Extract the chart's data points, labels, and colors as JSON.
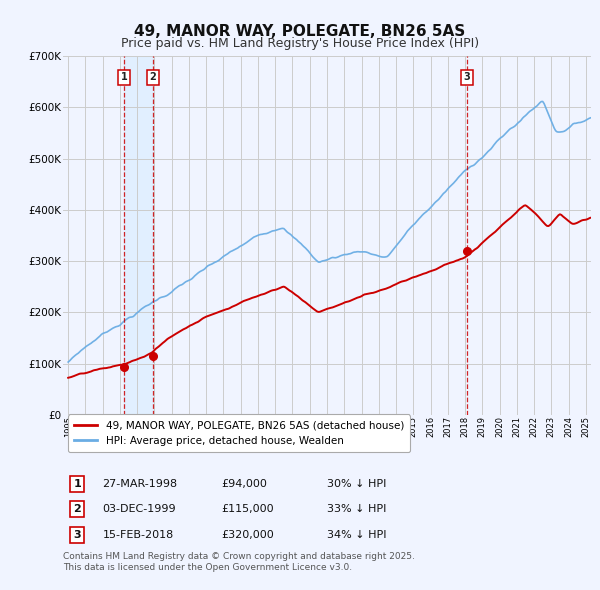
{
  "title": "49, MANOR WAY, POLEGATE, BN26 5AS",
  "subtitle": "Price paid vs. HM Land Registry's House Price Index (HPI)",
  "title_fontsize": 11,
  "subtitle_fontsize": 9,
  "ylim": [
    0,
    700000
  ],
  "yticks": [
    0,
    100000,
    200000,
    300000,
    400000,
    500000,
    600000,
    700000
  ],
  "ytick_labels": [
    "£0",
    "£100K",
    "£200K",
    "£300K",
    "£400K",
    "£500K",
    "£600K",
    "£700K"
  ],
  "x_start_year": 1995,
  "x_end_year": 2025,
  "hpi_color": "#6aade4",
  "price_color": "#cc0000",
  "bg_color": "#f0f4ff",
  "grid_color": "#cccccc",
  "purchase_dates": [
    1998.23,
    1999.92,
    2018.12
  ],
  "purchase_prices": [
    94000,
    115000,
    320000
  ],
  "purchase_labels": [
    "1",
    "2",
    "3"
  ],
  "vline_color": "#cc0000",
  "shade_color": "#ddeeff",
  "legend_label_red": "49, MANOR WAY, POLEGATE, BN26 5AS (detached house)",
  "legend_label_blue": "HPI: Average price, detached house, Wealden",
  "table_rows": [
    [
      "1",
      "27-MAR-1998",
      "£94,000",
      "30% ↓ HPI"
    ],
    [
      "2",
      "03-DEC-1999",
      "£115,000",
      "33% ↓ HPI"
    ],
    [
      "3",
      "15-FEB-2018",
      "£320,000",
      "34% ↓ HPI"
    ]
  ],
  "footer": "Contains HM Land Registry data © Crown copyright and database right 2025.\nThis data is licensed under the Open Government Licence v3.0.",
  "footer_fontsize": 6.5
}
